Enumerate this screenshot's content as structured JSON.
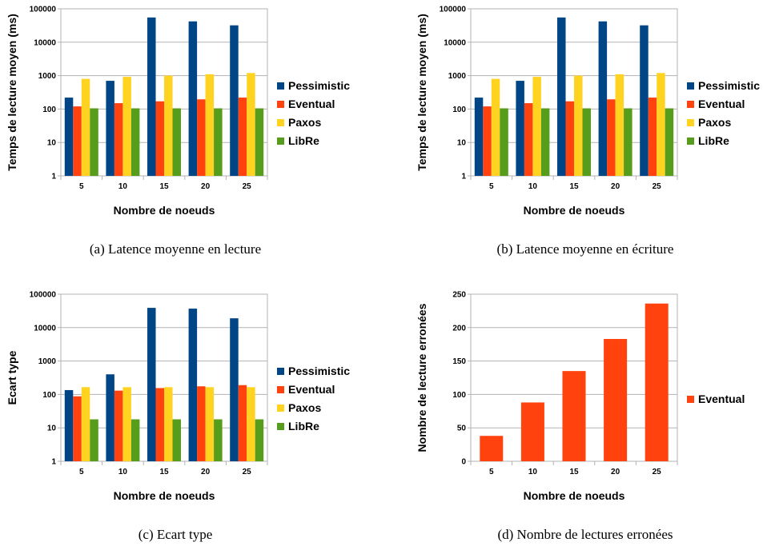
{
  "chart_data": [
    {
      "id": "a",
      "type": "bar",
      "yscale": "log",
      "ylim": [
        1,
        100000
      ],
      "yticks": [
        "1",
        "10",
        "100",
        "1000",
        "10000",
        "100000"
      ],
      "ylabel": "Temps de lecture moyen (ms)",
      "xlabel": "Nombre de noeuds",
      "categories": [
        "5",
        "10",
        "15",
        "20",
        "25"
      ],
      "legend_position": "right",
      "series": [
        {
          "name": "Pessimistic",
          "color": "#004586",
          "values": [
            220,
            700,
            55000,
            42000,
            32000
          ]
        },
        {
          "name": "Eventual",
          "color": "#ff420e",
          "values": [
            120,
            150,
            170,
            195,
            220
          ]
        },
        {
          "name": "Paxos",
          "color": "#ffd320",
          "values": [
            800,
            920,
            1000,
            1100,
            1200
          ]
        },
        {
          "name": "LibRe",
          "color": "#579d1c",
          "values": [
            105,
            105,
            105,
            105,
            105
          ]
        }
      ]
    },
    {
      "id": "b",
      "type": "bar",
      "yscale": "log",
      "ylim": [
        1,
        100000
      ],
      "yticks": [
        "1",
        "10",
        "100",
        "1000",
        "10000",
        "100000"
      ],
      "ylabel": "Temps de lecture moyen (ms)",
      "xlabel": "Nombre de noeuds",
      "categories": [
        "5",
        "10",
        "15",
        "20",
        "25"
      ],
      "legend_position": "right",
      "series": [
        {
          "name": "Pessimistic",
          "color": "#004586",
          "values": [
            220,
            700,
            55000,
            42000,
            32000
          ]
        },
        {
          "name": "Eventual",
          "color": "#ff420e",
          "values": [
            120,
            150,
            170,
            195,
            220
          ]
        },
        {
          "name": "Paxos",
          "color": "#ffd320",
          "values": [
            800,
            920,
            1000,
            1100,
            1200
          ]
        },
        {
          "name": "LibRe",
          "color": "#579d1c",
          "values": [
            105,
            105,
            105,
            105,
            105
          ]
        }
      ]
    },
    {
      "id": "c",
      "type": "bar",
      "yscale": "log",
      "ylim": [
        1,
        100000
      ],
      "yticks": [
        "1",
        "10",
        "100",
        "1000",
        "10000",
        "100000"
      ],
      "ylabel": "Ecart type",
      "xlabel": "Nombre de noeuds",
      "categories": [
        "5",
        "10",
        "15",
        "20",
        "25"
      ],
      "legend_position": "right",
      "series": [
        {
          "name": "Pessimistic",
          "color": "#004586",
          "values": [
            135,
            400,
            39000,
            37000,
            19000
          ]
        },
        {
          "name": "Eventual",
          "color": "#ff420e",
          "values": [
            88,
            130,
            155,
            175,
            190
          ]
        },
        {
          "name": "Paxos",
          "color": "#ffd320",
          "values": [
            165,
            165,
            165,
            165,
            165
          ]
        },
        {
          "name": "LibRe",
          "color": "#579d1c",
          "values": [
            18,
            18,
            18,
            18,
            18
          ]
        }
      ]
    },
    {
      "id": "d",
      "type": "bar",
      "yscale": "linear",
      "ylim": [
        0,
        250
      ],
      "yticks": [
        "0",
        "50",
        "100",
        "150",
        "200",
        "250"
      ],
      "ylabel": "Nombre de lecture erronées",
      "xlabel": "Nombre de noeuds",
      "categories": [
        "5",
        "10",
        "15",
        "20",
        "25"
      ],
      "legend_position": "right",
      "series": [
        {
          "name": "Eventual",
          "color": "#ff420e",
          "values": [
            38,
            88,
            135,
            183,
            236
          ]
        }
      ]
    }
  ],
  "captions": {
    "a": "(a) Latence moyenne en lecture",
    "b": "(b) Latence moyenne en écriture",
    "c": "(c) Ecart type",
    "d": "(d) Nombre de lectures erronées"
  }
}
